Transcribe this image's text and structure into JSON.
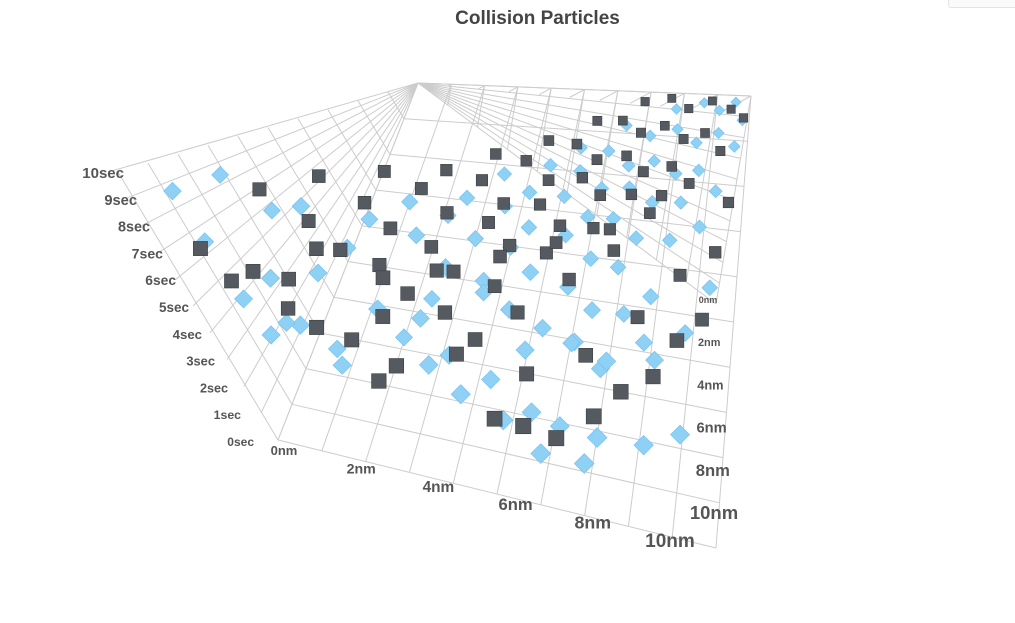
{
  "chart_data": {
    "type": "scatter",
    "title": "Collision Particles",
    "x_axis": {
      "range": [
        0,
        10
      ],
      "ticks": [
        "0nm",
        "2nm",
        "4nm",
        "6nm",
        "8nm",
        "10nm"
      ]
    },
    "z_axis": {
      "range": [
        0,
        10
      ],
      "ticks": [
        "0nm",
        "2nm",
        "4nm",
        "6nm",
        "8nm",
        "10nm"
      ]
    },
    "y_axis": {
      "range": [
        0,
        10
      ],
      "ticks": [
        "0sec",
        "1sec",
        "2sec",
        "3sec",
        "4sec",
        "5sec",
        "6sec",
        "7sec",
        "8sec",
        "9sec",
        "10sec"
      ]
    },
    "grid": true,
    "colors": {
      "series_1": "#8fd0f5",
      "series_2": "#555a60",
      "grid": "#cccccc",
      "axis_text": "#555555"
    },
    "series": [
      {
        "marker": "diamond",
        "points": [
          [
            0.2,
            0.6,
            8.8
          ],
          [
            0.5,
            0.4,
            7.2
          ],
          [
            0.8,
            0.3,
            5.3
          ],
          [
            1.1,
            0.2,
            4.2
          ],
          [
            1.6,
            0.5,
            6.5
          ],
          [
            1.9,
            0.3,
            5.0
          ],
          [
            2.2,
            0.6,
            3.2
          ],
          [
            0.8,
            1.6,
            9.5
          ],
          [
            1.4,
            1.9,
            8.2
          ],
          [
            2.6,
            1.4,
            9.8
          ],
          [
            3.0,
            1.7,
            7.9
          ],
          [
            2.4,
            1.1,
            6.8
          ],
          [
            3.3,
            1.3,
            5.6
          ],
          [
            3.9,
            1.8,
            4.9
          ],
          [
            4.4,
            1.5,
            3.8
          ],
          [
            5.1,
            1.6,
            2.8
          ],
          [
            5.9,
            1.4,
            1.9
          ],
          [
            6.4,
            1.5,
            1.2
          ],
          [
            3.4,
            2.4,
            9.1
          ],
          [
            4.1,
            2.8,
            8.4
          ],
          [
            4.6,
            2.6,
            7.2
          ],
          [
            5.2,
            2.9,
            6.4
          ],
          [
            5.8,
            2.5,
            5.8
          ],
          [
            6.3,
            2.7,
            4.6
          ],
          [
            6.9,
            2.8,
            3.9
          ],
          [
            7.4,
            2.6,
            2.9
          ],
          [
            3.9,
            3.4,
            9.6
          ],
          [
            4.5,
            3.7,
            8.9
          ],
          [
            5.0,
            3.6,
            7.9
          ],
          [
            5.6,
            3.9,
            7.3
          ],
          [
            6.1,
            3.5,
            6.7
          ],
          [
            6.7,
            3.8,
            5.4
          ],
          [
            7.2,
            3.6,
            4.5
          ],
          [
            7.8,
            3.9,
            3.8
          ],
          [
            8.2,
            3.6,
            2.6
          ],
          [
            4.7,
            4.4,
            9.4
          ],
          [
            5.3,
            4.8,
            8.6
          ],
          [
            5.9,
            4.5,
            8.0
          ],
          [
            6.5,
            4.9,
            6.9
          ],
          [
            7.1,
            4.6,
            6.1
          ],
          [
            7.6,
            4.8,
            5.1
          ],
          [
            8.4,
            4.4,
            4.3
          ],
          [
            5.1,
            5.6,
            9.9
          ],
          [
            5.7,
            5.4,
            9.1
          ],
          [
            6.3,
            5.8,
            8.3
          ],
          [
            6.9,
            5.5,
            7.5
          ],
          [
            7.3,
            5.9,
            6.3
          ],
          [
            7.9,
            5.6,
            5.7
          ],
          [
            8.6,
            5.9,
            4.8
          ],
          [
            5.8,
            6.5,
            9.6
          ],
          [
            6.4,
            6.7,
            8.8
          ],
          [
            7.0,
            6.4,
            8.1
          ],
          [
            7.5,
            6.8,
            7.1
          ],
          [
            8.1,
            6.6,
            6.4
          ],
          [
            8.7,
            6.9,
            5.3
          ],
          [
            9.2,
            6.5,
            4.1
          ],
          [
            6.2,
            7.4,
            9.8
          ],
          [
            6.8,
            7.6,
            9.0
          ],
          [
            7.4,
            7.3,
            8.4
          ],
          [
            7.9,
            7.7,
            7.6
          ],
          [
            8.5,
            7.5,
            6.9
          ],
          [
            9.0,
            7.8,
            5.9
          ],
          [
            9.5,
            7.4,
            4.9
          ],
          [
            6.9,
            8.6,
            9.5
          ],
          [
            7.6,
            8.4,
            8.7
          ],
          [
            8.2,
            8.8,
            7.8
          ],
          [
            8.8,
            8.5,
            7.0
          ],
          [
            9.3,
            8.9,
            6.2
          ],
          [
            9.8,
            8.6,
            5.6
          ],
          [
            8.0,
            9.4,
            9.7
          ],
          [
            8.7,
            9.7,
            9.2
          ],
          [
            9.2,
            9.5,
            8.3
          ],
          [
            9.6,
            9.8,
            7.4
          ],
          [
            9.9,
            9.3,
            6.6
          ],
          [
            4.2,
            0.9,
            4.1
          ],
          [
            4.8,
            0.7,
            3.4
          ],
          [
            5.5,
            0.8,
            2.4
          ],
          [
            6.2,
            0.6,
            1.5
          ],
          [
            7.0,
            0.9,
            0.8
          ],
          [
            7.5,
            1.1,
            2.2
          ],
          [
            8.3,
            1.6,
            1.0
          ],
          [
            9.0,
            2.2,
            0.4
          ],
          [
            2.9,
            2.2,
            2.6
          ],
          [
            6.0,
            2.1,
            4.2
          ],
          [
            6.6,
            3.1,
            2.8
          ],
          [
            7.9,
            2.2,
            4.9
          ],
          [
            8.6,
            3.1,
            3.1
          ],
          [
            9.1,
            4.1,
            2.4
          ],
          [
            9.6,
            5.2,
            3.0
          ],
          [
            1.0,
            1.0,
            3.8
          ],
          [
            1.8,
            1.2,
            2.9
          ],
          [
            3.6,
            2.9,
            4.0
          ],
          [
            4.9,
            3.1,
            5.0
          ]
        ]
      },
      {
        "marker": "cube",
        "points": [
          [
            0.3,
            0.4,
            6.8
          ],
          [
            0.4,
            0.7,
            5.4
          ],
          [
            1.0,
            0.8,
            6.1
          ],
          [
            1.4,
            1.3,
            5.6
          ],
          [
            1.8,
            0.9,
            4.2
          ],
          [
            2.3,
            1.2,
            3.6
          ],
          [
            2.7,
            0.9,
            2.4
          ],
          [
            3.2,
            1.1,
            3.1
          ],
          [
            1.2,
            2.1,
            8.9
          ],
          [
            1.8,
            2.4,
            7.6
          ],
          [
            2.4,
            2.2,
            6.8
          ],
          [
            2.9,
            2.6,
            5.9
          ],
          [
            3.5,
            2.3,
            5.2
          ],
          [
            4.0,
            2.6,
            4.0
          ],
          [
            4.6,
            2.4,
            3.2
          ],
          [
            2.1,
            3.1,
            9.7
          ],
          [
            2.7,
            3.4,
            8.4
          ],
          [
            3.2,
            3.2,
            7.5
          ],
          [
            3.8,
            3.5,
            6.4
          ],
          [
            4.3,
            3.2,
            5.7
          ],
          [
            4.9,
            3.6,
            4.4
          ],
          [
            5.4,
            3.3,
            3.6
          ],
          [
            3.0,
            4.2,
            9.9
          ],
          [
            3.6,
            4.4,
            9.0
          ],
          [
            4.2,
            4.1,
            8.2
          ],
          [
            4.8,
            4.6,
            7.1
          ],
          [
            5.3,
            4.3,
            6.3
          ],
          [
            5.9,
            4.7,
            5.2
          ],
          [
            6.4,
            4.4,
            4.1
          ],
          [
            3.8,
            5.3,
            9.4
          ],
          [
            4.4,
            5.6,
            8.5
          ],
          [
            5.0,
            5.2,
            7.7
          ],
          [
            5.6,
            5.7,
            6.9
          ],
          [
            6.1,
            5.4,
            6.0
          ],
          [
            6.7,
            5.8,
            4.9
          ],
          [
            7.2,
            5.5,
            3.9
          ],
          [
            4.5,
            6.4,
            9.8
          ],
          [
            5.1,
            6.6,
            9.1
          ],
          [
            5.7,
            6.3,
            8.1
          ],
          [
            6.3,
            6.8,
            7.3
          ],
          [
            6.8,
            6.5,
            6.5
          ],
          [
            7.4,
            6.9,
            5.3
          ],
          [
            7.9,
            6.6,
            4.4
          ],
          [
            5.3,
            7.5,
            9.6
          ],
          [
            5.9,
            7.7,
            8.8
          ],
          [
            6.5,
            7.4,
            7.9
          ],
          [
            7.1,
            7.8,
            7.1
          ],
          [
            7.6,
            7.5,
            6.2
          ],
          [
            8.2,
            7.9,
            5.0
          ],
          [
            8.7,
            7.6,
            4.0
          ],
          [
            6.1,
            8.6,
            9.9
          ],
          [
            6.7,
            8.8,
            9.2
          ],
          [
            7.3,
            8.5,
            8.4
          ],
          [
            7.8,
            8.9,
            7.4
          ],
          [
            8.4,
            8.6,
            6.6
          ],
          [
            8.9,
            8.9,
            5.5
          ],
          [
            9.4,
            8.5,
            4.6
          ],
          [
            7.0,
            9.6,
            9.7
          ],
          [
            7.7,
            9.8,
            8.9
          ],
          [
            8.3,
            9.5,
            8.0
          ],
          [
            8.9,
            9.8,
            7.2
          ],
          [
            9.5,
            9.6,
            6.3
          ],
          [
            9.9,
            9.4,
            5.4
          ],
          [
            5.0,
            1.2,
            1.4
          ],
          [
            5.8,
            1.0,
            1.9
          ],
          [
            6.3,
            1.3,
            0.9
          ],
          [
            7.2,
            1.8,
            1.6
          ],
          [
            7.8,
            2.4,
            2.1
          ],
          [
            8.5,
            2.9,
            2.3
          ],
          [
            9.1,
            3.6,
            3.6
          ],
          [
            9.4,
            4.6,
            1.9
          ],
          [
            9.6,
            6.1,
            2.9
          ],
          [
            9.8,
            7.3,
            3.5
          ],
          [
            3.1,
            1.6,
            4.7
          ],
          [
            4.3,
            1.9,
            3.1
          ],
          [
            5.6,
            2.3,
            2.0
          ],
          [
            6.9,
            3.0,
            2.4
          ],
          [
            8.0,
            4.1,
            3.0
          ],
          [
            8.8,
            5.4,
            2.8
          ],
          [
            2.2,
            1.7,
            7.2
          ],
          [
            3.3,
            2.0,
            6.3
          ],
          [
            4.1,
            2.9,
            6.1
          ],
          [
            5.2,
            3.9,
            6.2
          ],
          [
            6.0,
            5.1,
            5.1
          ],
          [
            7.0,
            6.0,
            4.2
          ],
          [
            8.1,
            7.1,
            4.6
          ],
          [
            0.9,
            1.4,
            3.9
          ]
        ]
      }
    ]
  }
}
